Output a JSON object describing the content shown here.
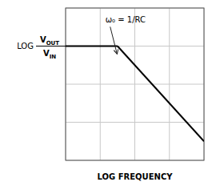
{
  "chart_data": {
    "type": "line",
    "xlabel": "LOG FREQUENCY",
    "ylabel": {
      "prefix": "LOG",
      "numerator": [
        "V",
        "OUT"
      ],
      "denominator": [
        "V",
        "IN"
      ]
    },
    "series": [
      {
        "x": [
          0,
          1.5
        ],
        "values": [
          3,
          3
        ],
        "color": "#000000"
      },
      {
        "x": [
          1.5,
          4
        ],
        "values": [
          3,
          0.5
        ],
        "color": "#000000"
      }
    ],
    "annotations": [
      {
        "text": "ω₀ = 1/RC",
        "x": 1.15,
        "y": 3.55,
        "arrow_x": 1.5,
        "arrow_y": 2.75
      }
    ],
    "xlim": [
      0,
      4
    ],
    "ylim": [
      0,
      4
    ],
    "xticks": [
      0,
      1,
      2,
      3,
      4
    ],
    "yticks": [
      0,
      1,
      2,
      3,
      4
    ],
    "grid": true,
    "tick_labels": false,
    "color": "#ffffff"
  }
}
